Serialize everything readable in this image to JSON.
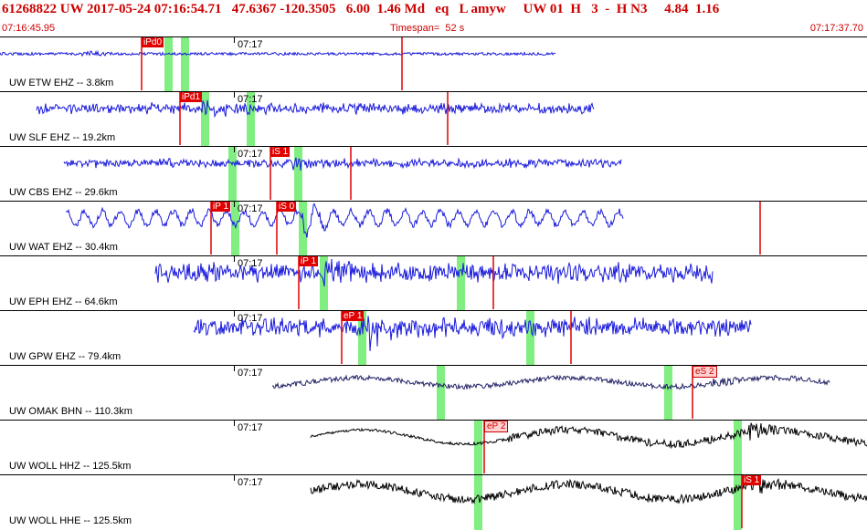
{
  "header": {
    "info_line": "61268822 UW 2017-05-24 07:16:54.71   47.6367 -120.3505   6.00  1.46 Md   eq   L amyw     UW 01  H   3  -  H N3     4.84  1.16",
    "start_time": "07:16:45.95",
    "timespan": "Timespan=  52 s",
    "end_time": "07:17:37.70"
  },
  "time_mark": "07:17",
  "colors": {
    "header_text": "#cc0000",
    "pick": "#e00000",
    "window": "#80ee80"
  },
  "traces": [
    {
      "label": "UW ETW EHZ -- 3.8km",
      "color": "#1a1adc",
      "start": 0,
      "end": 608,
      "amp": 3,
      "shape": "flat",
      "emergent": 0,
      "burst": 90,
      "picks": [
        {
          "text": "iPd0",
          "x": 155,
          "hollow": false
        },
        {
          "text": "",
          "x": 440,
          "hollow": false
        }
      ],
      "windows": [
        180,
        198
      ]
    },
    {
      "label": "UW SLF EHZ -- 19.2km",
      "color": "#1a1adc",
      "start": 40,
      "end": 650,
      "amp": 5,
      "shape": "noise",
      "emergent": 0,
      "burst": 220,
      "picks": [
        {
          "text": "iPd1",
          "x": 197,
          "hollow": false
        },
        {
          "text": "",
          "x": 490,
          "hollow": false
        }
      ],
      "windows": [
        220,
        270
      ]
    },
    {
      "label": "UW CBS EHZ -- 29.6km",
      "color": "#1a1adc",
      "start": 70,
      "end": 680,
      "amp": 4,
      "shape": "noise",
      "emergent": 0,
      "burst": 320,
      "picks": [
        {
          "text": "iS 1",
          "x": 296,
          "hollow": false
        },
        {
          "text": "",
          "x": 384,
          "hollow": false
        }
      ],
      "windows": [
        250,
        322
      ]
    },
    {
      "label": "UW WAT EHZ -- 30.4km",
      "color": "#1a1adc",
      "start": 72,
      "end": 682,
      "amp": 11,
      "shape": "wave",
      "emergent": 0,
      "burst": 330,
      "picks": [
        {
          "text": "iP 1",
          "x": 231,
          "hollow": false
        },
        {
          "text": "iS 0",
          "x": 303,
          "hollow": false
        },
        {
          "text": "",
          "x": 832,
          "hollow": false
        }
      ],
      "windows": [
        253,
        327
      ]
    },
    {
      "label": "UW EPH EHZ -- 64.6km",
      "color": "#1a1adc",
      "start": 170,
      "end": 780,
      "amp": 9,
      "shape": "noise",
      "emergent": 0,
      "burst": 355,
      "picks": [
        {
          "text": "iP 1",
          "x": 327,
          "hollow": false
        },
        {
          "text": "",
          "x": 540,
          "hollow": false
        }
      ],
      "windows": [
        350,
        500
      ]
    },
    {
      "label": "UW GPW EHZ -- 79.4km",
      "color": "#1a1adc",
      "start": 212,
      "end": 822,
      "amp": 9,
      "shape": "noise",
      "emergent": 0,
      "burst": 400,
      "picks": [
        {
          "text": "eP 1",
          "x": 374,
          "hollow": false
        },
        {
          "text": "",
          "x": 625,
          "hollow": false
        }
      ],
      "windows": [
        392,
        576
      ]
    },
    {
      "label": "UW OMAK BHN -- 110.3km",
      "color": "#222266",
      "start": 298,
      "end": 908,
      "amp": 9,
      "shape": "slow",
      "emergent": 0,
      "burst": 780,
      "picks": [
        {
          "text": "eS 2",
          "x": 758,
          "hollow": true
        }
      ],
      "windows": [
        478,
        727
      ]
    },
    {
      "label": "UW WOLL HHZ -- 125.5km",
      "color": "#000000",
      "start": 340,
      "end": 949,
      "amp": 14,
      "shape": "slow",
      "emergent": 555,
      "burst": 820,
      "picks": [
        {
          "text": "eP 2",
          "x": 530,
          "hollow": true
        }
      ],
      "windows": [
        519,
        803
      ]
    },
    {
      "label": "UW WOLL HHE -- 125.5km",
      "color": "#000000",
      "start": 340,
      "end": 949,
      "amp": 15,
      "shape": "slow",
      "emergent": 0,
      "burst": 830,
      "picks": [
        {
          "text": "iS 1",
          "x": 812,
          "hollow": false
        }
      ],
      "windows": [
        519,
        803
      ]
    }
  ]
}
